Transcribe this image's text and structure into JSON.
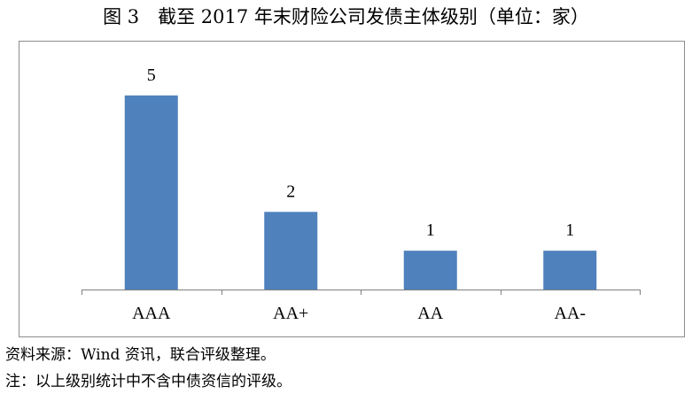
{
  "figure": {
    "title": "图 3　截至 2017 年末财险公司发债主体级别（单位：家）"
  },
  "chart_data": {
    "type": "bar",
    "title": "",
    "categories": [
      "AAA",
      "AA+",
      "AA",
      "AA-"
    ],
    "values": [
      5,
      2,
      1,
      1
    ],
    "xlabel": "",
    "ylabel": "",
    "ylim": [
      0,
      5.2
    ],
    "data_labels": true,
    "grid": false,
    "legend": false,
    "y_axis_visible": false,
    "bar_color": "#4f81bd",
    "axis_color": "#7f7f7f"
  },
  "notes": {
    "source": "资料来源：Wind 资讯，联合评级整理。",
    "remark": "注：以上级别统计中不含中债资信的评级。"
  }
}
